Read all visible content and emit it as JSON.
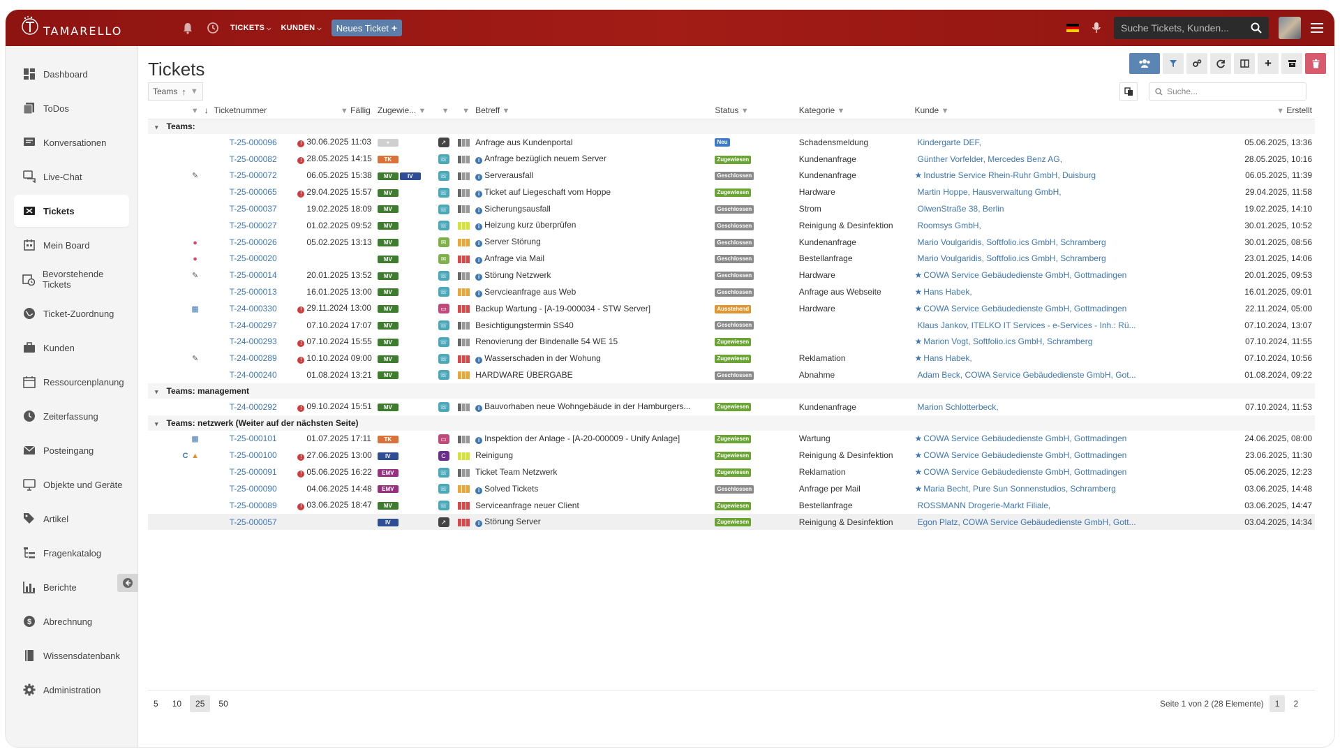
{
  "app": {
    "brand": "TAMARELLO"
  },
  "topbar": {
    "nav": [
      {
        "label": "TICKETS"
      },
      {
        "label": "KUNDEN"
      }
    ],
    "new_ticket": "Neues Ticket",
    "search_placeholder": "Suche Tickets, Kunden..."
  },
  "sidebar": {
    "items": [
      {
        "label": "Dashboard",
        "icon": "dashboard-icon"
      },
      {
        "label": "ToDos",
        "icon": "todos-icon"
      },
      {
        "label": "Konversationen",
        "icon": "conversations-icon"
      },
      {
        "label": "Live-Chat",
        "icon": "chat-icon"
      },
      {
        "label": "Tickets",
        "icon": "tickets-icon",
        "active": true
      },
      {
        "label": "Mein Board",
        "icon": "board-icon"
      },
      {
        "label": "Bevorstehende Tickets",
        "icon": "calendar-clock-icon"
      },
      {
        "label": "Ticket-Zuordnung",
        "icon": "globe-icon"
      },
      {
        "label": "Kunden",
        "icon": "briefcase-icon"
      },
      {
        "label": "Ressourcenplanung",
        "icon": "calendar-icon"
      },
      {
        "label": "Zeiterfassung",
        "icon": "clock-icon"
      },
      {
        "label": "Posteingang",
        "icon": "mail-icon"
      },
      {
        "label": "Objekte und Geräte",
        "icon": "monitor-icon"
      },
      {
        "label": "Artikel",
        "icon": "tags-icon"
      },
      {
        "label": "Fragenkatalog",
        "icon": "list-tree-icon"
      },
      {
        "label": "Berichte",
        "icon": "bar-chart-icon"
      },
      {
        "label": "Abrechnung",
        "icon": "dollar-icon"
      },
      {
        "label": "Wissensdatenbank",
        "icon": "book-icon"
      },
      {
        "label": "Administration",
        "icon": "gear-icon"
      }
    ]
  },
  "page": {
    "title": "Tickets",
    "group_chip": "Teams",
    "search_placeholder": "Suche..."
  },
  "columns": {
    "ticketnummer": "Ticketnummer",
    "faellig": "Fällig",
    "zugewiesen": "Zugewie...",
    "betreff": "Betreff",
    "status": "Status",
    "kategorie": "Kategorie",
    "kunde": "Kunde",
    "erstellt": "Erstellt"
  },
  "colors": {
    "TK": "#d9733a",
    "MV": "#3f7d2e",
    "IV": "#2e4d94",
    "EMV": "#9a2f7f",
    "Neu": "#3c79c7",
    "Zugewiesen": "#6aa533",
    "Geschlossen": "#8a8a8a",
    "Ausstehend": "#e0952f"
  },
  "groups": [
    {
      "label": "Teams:",
      "rows": [
        {
          "pre": "",
          "num": "T-25-000096",
          "warn": true,
          "due": "30.06.2025 11:03",
          "assign": [
            "+"
          ],
          "type": "external",
          "prio": [
            "#666",
            "#999",
            "#999"
          ],
          "info": false,
          "subject": "Anfrage aus Kundenportal",
          "status": "Neu",
          "cat": "Schadensmeldung",
          "star": false,
          "cust": "Kindergarte DEF,",
          "created": "05.06.2025, 13:36"
        },
        {
          "pre": "",
          "num": "T-25-000082",
          "warn": true,
          "due": "28.05.2025 14:15",
          "assign": [
            "TK"
          ],
          "type": "phone",
          "prio": [
            "#666",
            "#999",
            "#999"
          ],
          "info": true,
          "subject": "Anfrage bezüglich neuem Server",
          "status": "Zugewiesen",
          "cat": "Kundenanfrage",
          "star": false,
          "cust": "Günther Vorfelder, Mercedes Benz AG,",
          "created": "28.05.2025, 10:16"
        },
        {
          "pre": "clip",
          "num": "T-25-000072",
          "warn": false,
          "due": "06.05.2025 15:38",
          "assign": [
            "MV",
            "IV"
          ],
          "type": "phone",
          "prio": [
            "#666",
            "#999",
            "#999"
          ],
          "info": true,
          "subject": "Serverausfall",
          "status": "Geschlossen",
          "cat": "Kundenanfrage",
          "star": true,
          "cust": "Industrie Service Rhein-Ruhr GmbH, Duisburg",
          "created": "06.05.2025, 11:39"
        },
        {
          "pre": "",
          "num": "T-25-000065",
          "warn": true,
          "due": "29.04.2025 15:57",
          "assign": [
            "MV"
          ],
          "type": "phone",
          "prio": [
            "#666",
            "#999",
            "#999"
          ],
          "info": true,
          "subject": "Ticket auf Liegeschaft vom Hoppe",
          "status": "Zugewiesen",
          "cat": "Hardware",
          "star": false,
          "cust": "Martin Hoppe, Hausverwaltung GmbH,",
          "created": "29.04.2025, 11:58"
        },
        {
          "pre": "",
          "num": "T-25-000037",
          "warn": false,
          "due": "19.02.2025 18:09",
          "assign": [
            "MV"
          ],
          "type": "phone",
          "prio": [
            "#666",
            "#999",
            "#999"
          ],
          "info": true,
          "subject": "Sicherungsausfall",
          "status": "Geschlossen",
          "cat": "Strom",
          "star": false,
          "cust": "OlwenStraße 38, Berlin",
          "created": "19.02.2025, 14:10"
        },
        {
          "pre": "",
          "num": "T-25-000027",
          "warn": false,
          "due": "01.02.2025 09:52",
          "assign": [
            "MV"
          ],
          "type": "phone",
          "prio": [
            "#d4e23a",
            "#d4e23a",
            "#d4e23a"
          ],
          "info": true,
          "subject": "Heizung kurz überprüfen",
          "status": "Geschlossen",
          "cat": "Reinigung & Desinfektion",
          "star": false,
          "cust": "Roomsys GmbH,",
          "created": "30.01.2025, 10:52"
        },
        {
          "pre": "apple",
          "num": "T-25-000026",
          "warn": false,
          "due": "05.02.2025 13:13",
          "assign": [
            "MV"
          ],
          "type": "mail",
          "prio": [
            "#e8a838",
            "#e8a838",
            "#e8a838"
          ],
          "info": true,
          "subject": "Server Störung",
          "status": "Geschlossen",
          "cat": "Kundenanfrage",
          "star": false,
          "cust": "Mario Voulgaridis, Softfolio.ics GmbH, Schramberg",
          "created": "30.01.2025, 08:56"
        },
        {
          "pre": "apple",
          "num": "T-25-000020",
          "warn": false,
          "due": "",
          "assign": [
            "MV"
          ],
          "type": "mail",
          "prio": [
            "#d84a4a",
            "#d84a4a",
            "#d84a4a"
          ],
          "info": true,
          "subject": "Anfrage via Mail",
          "status": "Geschlossen",
          "cat": "Bestellanfrage",
          "star": false,
          "cust": "Mario Voulgaridis, Softfolio.ics GmbH, Schramberg",
          "created": "23.01.2025, 14:06"
        },
        {
          "pre": "clip",
          "num": "T-25-000014",
          "warn": false,
          "due": "20.01.2025 13:52",
          "assign": [
            "MV"
          ],
          "type": "phone",
          "prio": [
            "#666",
            "#999",
            "#999"
          ],
          "info": true,
          "subject": "Störung Netzwerk",
          "status": "Geschlossen",
          "cat": "Hardware",
          "star": true,
          "cust": "COWA Service Gebäudedienste GmbH, Gottmadingen",
          "created": "20.01.2025, 09:53"
        },
        {
          "pre": "",
          "num": "T-25-000013",
          "warn": false,
          "due": "16.01.2025 13:00",
          "assign": [
            "MV"
          ],
          "type": "phone",
          "prio": [
            "#e8a838",
            "#e8a838",
            "#e8a838"
          ],
          "info": true,
          "subject": "Servcieanfrage aus Web",
          "status": "Geschlossen",
          "cat": "Anfrage aus Webseite",
          "star": true,
          "cust": "Hans Habek,",
          "created": "16.01.2025, 09:01"
        },
        {
          "pre": "cal",
          "num": "T-24-000330",
          "warn": true,
          "due": "29.11.2024 13:00",
          "assign": [
            "MV"
          ],
          "type": "calendar",
          "prio": [
            "#d84a4a",
            "#d84a4a",
            "#d84a4a"
          ],
          "info": false,
          "subject": "Backup Wartung - [A-19-000034 - STW Server]",
          "status": "Ausstehend",
          "cat": "Hardware",
          "star": true,
          "cust": "COWA Service Gebäudedienste GmbH, Gottmadingen",
          "created": "22.11.2024, 05:00"
        },
        {
          "pre": "",
          "num": "T-24-000297",
          "warn": false,
          "due": "07.10.2024 17:07",
          "assign": [
            "MV"
          ],
          "type": "phone",
          "prio": [
            "#666",
            "#999",
            "#999"
          ],
          "info": false,
          "subject": "Besichtigungstermin SS40",
          "status": "Geschlossen",
          "cat": "",
          "star": false,
          "cust": "Klaus Jankov, ITELKO IT Services - e-Services - Inh.: Rü...",
          "created": "07.10.2024, 13:07"
        },
        {
          "pre": "",
          "num": "T-24-000293",
          "warn": true,
          "due": "07.10.2024 15:55",
          "assign": [
            "MV"
          ],
          "type": "phone",
          "prio": [
            "#666",
            "#999",
            "#999"
          ],
          "info": false,
          "subject": "Renovierung der Bindenalle 54 WE 15",
          "status": "Zugewiesen",
          "cat": "",
          "star": true,
          "cust": "Marion Vogt, Softfolio.ics GmbH, Schramberg",
          "created": "07.10.2024, 11:55"
        },
        {
          "pre": "clip",
          "num": "T-24-000289",
          "warn": true,
          "due": "10.10.2024 09:00",
          "assign": [
            "MV"
          ],
          "type": "phone",
          "prio": [
            "#d84a4a",
            "#d84a4a",
            "#d84a4a"
          ],
          "info": true,
          "subject": "Wasserschaden in der Wohung",
          "status": "Zugewiesen",
          "cat": "Reklamation",
          "star": true,
          "cust": "Hans Habek,",
          "created": "07.10.2024, 10:56"
        },
        {
          "pre": "",
          "num": "T-24-000240",
          "warn": false,
          "due": "01.08.2024 13:21",
          "assign": [
            "MV"
          ],
          "type": "phone",
          "prio": [
            "#e8a838",
            "#e8a838",
            "#e8a838"
          ],
          "info": false,
          "subject": "HARDWARE ÜBERGABE",
          "status": "Geschlossen",
          "cat": "Abnahme",
          "star": false,
          "cust": "Adam Beck, COWA Service Gebäudedienste GmbH, Got...",
          "created": "01.08.2024, 09:22"
        }
      ]
    },
    {
      "label": "Teams: management",
      "rows": [
        {
          "pre": "",
          "num": "T-24-000292",
          "warn": true,
          "due": "09.10.2024 15:51",
          "assign": [
            "MV"
          ],
          "type": "phone",
          "prio": [
            "#666",
            "#999",
            "#999"
          ],
          "info": true,
          "subject": "Bauvorhaben neue Wohngebäude in der Hamburgers...",
          "status": "Zugewiesen",
          "cat": "Kundenanfrage",
          "star": false,
          "cust": "Marion Schlotterbeck,",
          "created": "07.10.2024, 11:53"
        }
      ]
    },
    {
      "label": "Teams: netzwerk (Weiter auf der nächsten Seite)",
      "rows": [
        {
          "pre": "cal",
          "num": "T-25-000101",
          "warn": false,
          "due": "01.07.2025 17:11",
          "assign": [
            "TK"
          ],
          "type": "calendar",
          "prio": [
            "#666",
            "#999",
            "#999"
          ],
          "info": true,
          "subject": "Inspektion der Anlage - [A-20-000009 - Unify Anlage]",
          "status": "Zugewiesen",
          "cat": "Wartung",
          "star": true,
          "cust": "COWA Service Gebäudedienste GmbH, Gottmadingen",
          "created": "24.06.2025, 08:00"
        },
        {
          "pre": "cwarn",
          "num": "T-25-000100",
          "warn": true,
          "due": "27.06.2025 13:00",
          "assign": [
            "IV"
          ],
          "type": "recurring",
          "prio": [
            "#d4e23a",
            "#d4e23a",
            "#d4e23a"
          ],
          "info": false,
          "subject": "Reinigung",
          "status": "Zugewiesen",
          "cat": "Reinigung & Desinfektion",
          "star": true,
          "cust": "COWA Service Gebäudedienste GmbH, Gottmadingen",
          "created": "23.06.2025, 11:30"
        },
        {
          "pre": "",
          "num": "T-25-000091",
          "warn": true,
          "due": "05.06.2025 16:22",
          "assign": [
            "EMV"
          ],
          "type": "phone",
          "prio": [
            "#666",
            "#999",
            "#999"
          ],
          "info": false,
          "subject": "Ticket Team Netzwerk",
          "status": "Zugewiesen",
          "cat": "Reklamation",
          "star": true,
          "cust": "COWA Service Gebäudedienste GmbH, Gottmadingen",
          "created": "05.06.2025, 12:23"
        },
        {
          "pre": "",
          "num": "T-25-000090",
          "warn": false,
          "due": "04.06.2025 14:48",
          "assign": [
            "EMV"
          ],
          "type": "phone",
          "prio": [
            "#e8a838",
            "#e8a838",
            "#e8a838"
          ],
          "info": true,
          "subject": "Solved Tickets",
          "status": "Geschlossen",
          "cat": "Anfrage per Mail",
          "star": true,
          "cust": "Maria Becht, Pure Sun Sonnenstudios, Schramberg",
          "created": "03.06.2025, 14:48"
        },
        {
          "pre": "",
          "num": "T-25-000089",
          "warn": true,
          "due": "03.06.2025 18:47",
          "assign": [
            "MV"
          ],
          "type": "phone",
          "prio": [
            "#d84a4a",
            "#d84a4a",
            "#d84a4a"
          ],
          "info": false,
          "subject": "Serviceanfrage neuer Client",
          "status": "Zugewiesen",
          "cat": "Bestellanfrage",
          "star": false,
          "cust": "ROSSMANN Drogerie-Markt Filiale,",
          "created": "03.06.2025, 14:47"
        },
        {
          "pre": "",
          "num": "T-25-000057",
          "warn": false,
          "due": "",
          "assign": [
            "IV"
          ],
          "type": "external",
          "prio": [
            "#d84a4a",
            "#d84a4a",
            "#d84a4a"
          ],
          "info": true,
          "subject": "Störung Server",
          "status": "Zugewiesen",
          "cat": "Reinigung & Desinfektion",
          "star": false,
          "cust": "Egon Platz, COWA Service Gebäudedienste GmbH, Gott...",
          "created": "03.04.2025, 14:34"
        }
      ]
    }
  ],
  "pagination": {
    "sizes": [
      "5",
      "10",
      "25",
      "50"
    ],
    "selected_size": "25",
    "summary": "Seite 1 von 2 (28 Elemente)",
    "pages": [
      "1",
      "2"
    ],
    "current": "1"
  }
}
